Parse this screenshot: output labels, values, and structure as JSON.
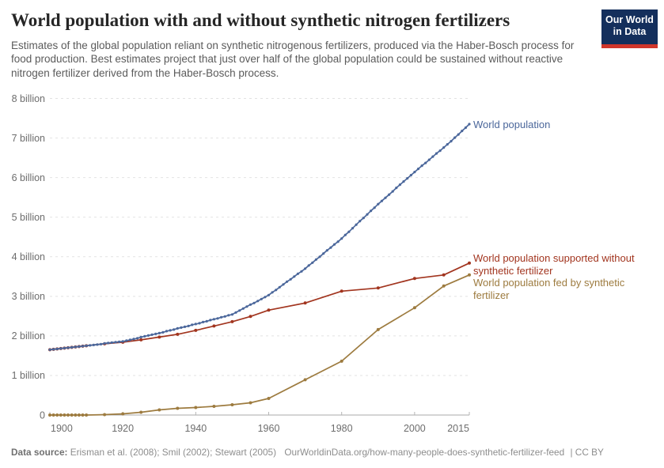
{
  "header": {
    "title": "World population with and without synthetic nitrogen fertilizers",
    "subtitle": "Estimates of the global population reliant on synthetic nitrogenous fertilizers, produced via the Haber-Bosch process for food production. Best estimates project that just over half of the global population could be sustained without reactive nitrogen fertilizer derived from the Haber-Bosch process.",
    "logo": {
      "line1": "Our World",
      "line2": "in Data",
      "bg_color": "#142f5c",
      "stripe_color": "#d0362b"
    }
  },
  "footer": {
    "datasource_label": "Data source:",
    "datasource_text": "Erisman et al. (2008); Smil (2002); Stewart (2005)",
    "url_text": "OurWorldinData.org/how-many-people-does-synthetic-fertilizer-feed",
    "license_text": "| CC BY"
  },
  "chart_data": {
    "type": "line",
    "title": "World population with and without synthetic nitrogen fertilizers",
    "xlabel": "",
    "ylabel": "",
    "unit": "billion people",
    "xlim": [
      1900,
      2015
    ],
    "ylim": [
      0,
      8
    ],
    "grid": "horizontal-dashed",
    "legend_position": "labels-at-line-ends-right",
    "x_ticks": [
      1900,
      1920,
      1940,
      1960,
      1980,
      2000,
      2015
    ],
    "y_ticks": [
      0,
      1,
      2,
      3,
      4,
      5,
      6,
      7,
      8
    ],
    "y_tick_labels": [
      "0",
      "1 billion",
      "2 billion",
      "3 billion",
      "4 billion",
      "5 billion",
      "6 billion",
      "7 billion",
      "8 billion"
    ],
    "axis_color": "#a8a8a8",
    "grid_color": "#e2e2e2",
    "tick_color": "#b5b5b5",
    "tick_label_color": "#6d6d6d",
    "series": [
      {
        "id": "without-fertilizer",
        "name": "World population supported without synthetic fertilizer",
        "color": "#a2351f",
        "label_lines": [
          "World population supported without",
          "synthetic fertilizer"
        ],
        "label_dys": [
          -2,
          14
        ],
        "line_width": 1.7,
        "marker_radius": 2,
        "points": [
          [
            1900,
            1.65
          ],
          [
            1901,
            1.66
          ],
          [
            1902,
            1.67
          ],
          [
            1903,
            1.68
          ],
          [
            1904,
            1.69
          ],
          [
            1905,
            1.7
          ],
          [
            1906,
            1.71
          ],
          [
            1907,
            1.72
          ],
          [
            1908,
            1.73
          ],
          [
            1909,
            1.74
          ],
          [
            1910,
            1.75
          ],
          [
            1915,
            1.8
          ],
          [
            1920,
            1.84
          ],
          [
            1925,
            1.9
          ],
          [
            1930,
            1.97
          ],
          [
            1935,
            2.04
          ],
          [
            1940,
            2.14
          ],
          [
            1945,
            2.25
          ],
          [
            1950,
            2.36
          ],
          [
            1955,
            2.49
          ],
          [
            1960,
            2.65
          ],
          [
            1970,
            2.83
          ],
          [
            1980,
            3.13
          ],
          [
            1990,
            3.21
          ],
          [
            2000,
            3.45
          ],
          [
            2008,
            3.54
          ],
          [
            2015,
            3.84
          ]
        ]
      },
      {
        "id": "fed-by-fertilizer",
        "name": "World population fed by synthetic fertilizer",
        "color": "#9d7b3f",
        "label_lines": [
          "World population fed by synthetic",
          "fertilizer"
        ],
        "label_dys": [
          14,
          30
        ],
        "line_width": 1.7,
        "marker_radius": 2,
        "points": [
          [
            1900,
            0.0
          ],
          [
            1901,
            0.0
          ],
          [
            1902,
            0.0
          ],
          [
            1903,
            0.0
          ],
          [
            1904,
            0.0
          ],
          [
            1905,
            0.0
          ],
          [
            1906,
            0.0
          ],
          [
            1907,
            0.0
          ],
          [
            1908,
            0.0
          ],
          [
            1909,
            0.0
          ],
          [
            1910,
            0.0
          ],
          [
            1915,
            0.01
          ],
          [
            1920,
            0.03
          ],
          [
            1925,
            0.07
          ],
          [
            1930,
            0.13
          ],
          [
            1935,
            0.17
          ],
          [
            1940,
            0.19
          ],
          [
            1945,
            0.22
          ],
          [
            1950,
            0.26
          ],
          [
            1955,
            0.31
          ],
          [
            1960,
            0.42
          ],
          [
            1970,
            0.89
          ],
          [
            1980,
            1.36
          ],
          [
            1990,
            2.16
          ],
          [
            2000,
            2.71
          ],
          [
            2008,
            3.26
          ],
          [
            2015,
            3.54
          ]
        ]
      },
      {
        "id": "world-population",
        "name": "World population",
        "color": "#4b679b",
        "label_lines": [
          "World population"
        ],
        "label_dys": [
          5
        ],
        "line_width": 1.7,
        "marker_radius": 1.6,
        "points": [
          [
            1900,
            1.65
          ],
          [
            1901,
            1.66
          ],
          [
            1902,
            1.67
          ],
          [
            1903,
            1.68
          ],
          [
            1904,
            1.69
          ],
          [
            1905,
            1.7
          ],
          [
            1906,
            1.71
          ],
          [
            1907,
            1.72
          ],
          [
            1908,
            1.73
          ],
          [
            1909,
            1.74
          ],
          [
            1910,
            1.75
          ],
          [
            1911,
            1.76
          ],
          [
            1912,
            1.77
          ],
          [
            1913,
            1.78
          ],
          [
            1914,
            1.79
          ],
          [
            1915,
            1.81
          ],
          [
            1916,
            1.82
          ],
          [
            1917,
            1.83
          ],
          [
            1918,
            1.84
          ],
          [
            1919,
            1.85
          ],
          [
            1920,
            1.86
          ],
          [
            1921,
            1.88
          ],
          [
            1922,
            1.9
          ],
          [
            1923,
            1.92
          ],
          [
            1924,
            1.94
          ],
          [
            1925,
            1.97
          ],
          [
            1926,
            1.99
          ],
          [
            1927,
            2.01
          ],
          [
            1928,
            2.03
          ],
          [
            1929,
            2.05
          ],
          [
            1930,
            2.07
          ],
          [
            1931,
            2.09
          ],
          [
            1932,
            2.12
          ],
          [
            1933,
            2.14
          ],
          [
            1934,
            2.16
          ],
          [
            1935,
            2.19
          ],
          [
            1936,
            2.21
          ],
          [
            1937,
            2.23
          ],
          [
            1938,
            2.25
          ],
          [
            1939,
            2.28
          ],
          [
            1940,
            2.3
          ],
          [
            1941,
            2.32
          ],
          [
            1942,
            2.35
          ],
          [
            1943,
            2.37
          ],
          [
            1944,
            2.4
          ],
          [
            1945,
            2.42
          ],
          [
            1946,
            2.44
          ],
          [
            1947,
            2.47
          ],
          [
            1948,
            2.49
          ],
          [
            1949,
            2.52
          ],
          [
            1950,
            2.54
          ],
          [
            1951,
            2.59
          ],
          [
            1952,
            2.64
          ],
          [
            1953,
            2.69
          ],
          [
            1954,
            2.74
          ],
          [
            1955,
            2.79
          ],
          [
            1956,
            2.83
          ],
          [
            1957,
            2.88
          ],
          [
            1958,
            2.93
          ],
          [
            1959,
            2.98
          ],
          [
            1960,
            3.03
          ],
          [
            1961,
            3.1
          ],
          [
            1962,
            3.16
          ],
          [
            1963,
            3.23
          ],
          [
            1964,
            3.3
          ],
          [
            1965,
            3.37
          ],
          [
            1966,
            3.43
          ],
          [
            1967,
            3.5
          ],
          [
            1968,
            3.57
          ],
          [
            1969,
            3.63
          ],
          [
            1970,
            3.7
          ],
          [
            1971,
            3.78
          ],
          [
            1972,
            3.85
          ],
          [
            1973,
            3.93
          ],
          [
            1974,
            4.0
          ],
          [
            1975,
            4.08
          ],
          [
            1976,
            4.16
          ],
          [
            1977,
            4.23
          ],
          [
            1978,
            4.31
          ],
          [
            1979,
            4.38
          ],
          [
            1980,
            4.46
          ],
          [
            1981,
            4.55
          ],
          [
            1982,
            4.63
          ],
          [
            1983,
            4.72
          ],
          [
            1984,
            4.81
          ],
          [
            1985,
            4.9
          ],
          [
            1986,
            4.98
          ],
          [
            1987,
            5.07
          ],
          [
            1988,
            5.16
          ],
          [
            1989,
            5.24
          ],
          [
            1990,
            5.33
          ],
          [
            1991,
            5.41
          ],
          [
            1992,
            5.49
          ],
          [
            1993,
            5.57
          ],
          [
            1994,
            5.65
          ],
          [
            1995,
            5.74
          ],
          [
            1996,
            5.82
          ],
          [
            1997,
            5.9
          ],
          [
            1998,
            5.98
          ],
          [
            1999,
            6.06
          ],
          [
            2000,
            6.14
          ],
          [
            2001,
            6.22
          ],
          [
            2002,
            6.3
          ],
          [
            2003,
            6.37
          ],
          [
            2004,
            6.45
          ],
          [
            2005,
            6.53
          ],
          [
            2006,
            6.61
          ],
          [
            2007,
            6.68
          ],
          [
            2008,
            6.76
          ],
          [
            2009,
            6.84
          ],
          [
            2010,
            6.92
          ],
          [
            2011,
            7.01
          ],
          [
            2012,
            7.09
          ],
          [
            2013,
            7.18
          ],
          [
            2014,
            7.26
          ],
          [
            2015,
            7.35
          ]
        ]
      }
    ]
  }
}
